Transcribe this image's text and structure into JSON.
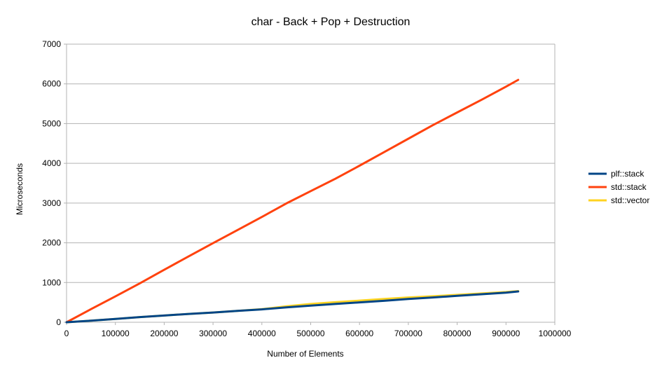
{
  "chart_data": {
    "type": "line",
    "title": "char - Back + Pop + Destruction",
    "xlabel": "Number of Elements",
    "ylabel": "Microseconds",
    "xlim": [
      0,
      1000000
    ],
    "ylim": [
      0,
      7000
    ],
    "x_ticks": [
      0,
      100000,
      200000,
      300000,
      400000,
      500000,
      600000,
      700000,
      800000,
      900000,
      1000000
    ],
    "x_tick_labels": [
      "0",
      "100000",
      "200000",
      "300000",
      "400000",
      "500000",
      "600000",
      "700000",
      "800000",
      "900000",
      "1000000"
    ],
    "y_ticks": [
      0,
      1000,
      2000,
      3000,
      4000,
      5000,
      6000,
      7000
    ],
    "y_tick_labels": [
      "0",
      "1000",
      "2000",
      "3000",
      "4000",
      "5000",
      "6000",
      "7000"
    ],
    "grid": "horizontal",
    "legend_position": "right",
    "series": [
      {
        "name": "plf::stack",
        "color": "#004586",
        "x": [
          0,
          50000,
          100000,
          150000,
          200000,
          250000,
          300000,
          350000,
          400000,
          450000,
          500000,
          550000,
          600000,
          650000,
          700000,
          750000,
          800000,
          850000,
          900000,
          925000
        ],
        "y": [
          0,
          40,
          85,
          130,
          170,
          210,
          245,
          285,
          325,
          375,
          420,
          460,
          500,
          540,
          585,
          625,
          665,
          705,
          745,
          775
        ]
      },
      {
        "name": "std::stack",
        "color": "#ff420e",
        "x": [
          0,
          50000,
          100000,
          150000,
          200000,
          250000,
          300000,
          350000,
          400000,
          450000,
          500000,
          550000,
          600000,
          650000,
          700000,
          750000,
          800000,
          850000,
          900000,
          925000
        ],
        "y": [
          0,
          330,
          650,
          980,
          1320,
          1660,
          1990,
          2320,
          2650,
          2990,
          3300,
          3610,
          3940,
          4280,
          4620,
          4960,
          5280,
          5600,
          5930,
          6100
        ]
      },
      {
        "name": "std::vector",
        "color": "#ffd320",
        "x": [
          0,
          50000,
          100000,
          150000,
          200000,
          250000,
          300000,
          350000,
          400000,
          450000,
          500000,
          550000,
          600000,
          650000,
          700000,
          750000,
          800000,
          850000,
          900000,
          925000
        ],
        "y": [
          0,
          40,
          85,
          130,
          170,
          210,
          245,
          285,
          330,
          400,
          460,
          505,
          545,
          585,
          625,
          655,
          690,
          725,
          760,
          785
        ]
      }
    ]
  }
}
